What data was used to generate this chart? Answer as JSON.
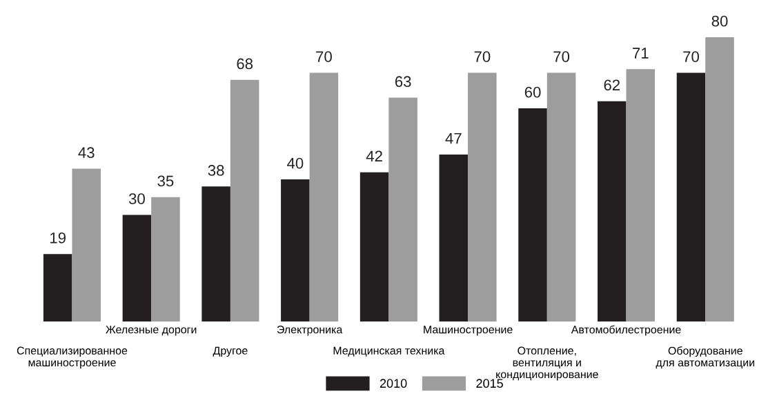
{
  "chart_data": {
    "type": "bar",
    "categories": [
      "Специализированное\nмашиностроение",
      "Железные дороги",
      "Другое",
      "Электроника",
      "Медицинская техника",
      "Машиностроение",
      "Отопление,\nвентиляция и\nкондиционирование",
      "Автомобилестроение",
      "Оборудование\nдля автоматизации"
    ],
    "series": [
      {
        "name": "2010",
        "color": "#231f20",
        "values": [
          19,
          30,
          38,
          40,
          42,
          47,
          60,
          62,
          70
        ]
      },
      {
        "name": "2015",
        "color": "#9d9d9d",
        "values": [
          43,
          35,
          68,
          70,
          63,
          70,
          70,
          71,
          80
        ]
      }
    ],
    "data_labels": true,
    "legend": "bottom"
  }
}
